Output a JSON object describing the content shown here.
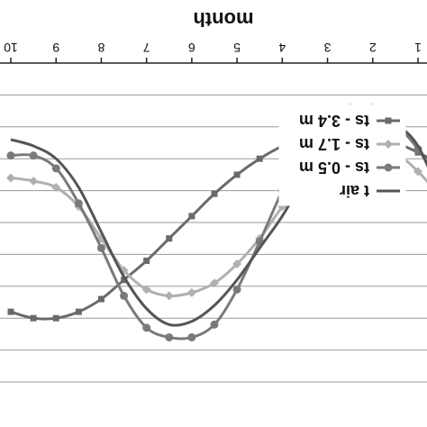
{
  "chart_data": {
    "type": "line",
    "xlabel": "month",
    "x_ticks": [
      1,
      2,
      3,
      4,
      5,
      6,
      7,
      8,
      9,
      10
    ],
    "x_range": [
      1,
      10
    ],
    "y_range": [
      0,
      10
    ],
    "grid": true,
    "legend_position": "top-right",
    "orientation": "rotated 180 degrees",
    "series": [
      {
        "name": "ts - 3.4 m",
        "marker": "square",
        "color": "#6a6a6a",
        "x": [
          0.5,
          1,
          1.5,
          2,
          2.5,
          3,
          3.5,
          4,
          4.5,
          5,
          5.5,
          6,
          6.5,
          7,
          7.5,
          8,
          8.5,
          9,
          9.5,
          10
        ],
        "values": [
          3.2,
          2.8,
          2.5,
          2.3,
          2.2,
          2.2,
          2.3,
          2.6,
          3.0,
          3.5,
          4.1,
          4.8,
          5.5,
          6.2,
          6.8,
          7.4,
          7.8,
          8.0,
          8.0,
          7.8
        ]
      },
      {
        "name": "ts - 1.7 m",
        "marker": "diamond",
        "color": "#b0b0b0",
        "x": [
          0.5,
          1,
          1.5,
          2,
          2.5,
          3,
          3.5,
          4,
          4.5,
          5,
          5.5,
          6,
          6.5,
          7,
          7.5,
          8,
          8.5,
          9,
          9.5,
          10
        ],
        "values": [
          4.2,
          3.4,
          2.8,
          2.5,
          2.6,
          2.9,
          3.6,
          4.5,
          5.5,
          6.3,
          6.9,
          7.2,
          7.3,
          7.1,
          6.5,
          5.5,
          4.5,
          3.9,
          3.7,
          3.6
        ]
      },
      {
        "name": "ts - 0.5 m",
        "marker": "circle",
        "color": "#7a7a7a",
        "x": [
          0.5,
          1,
          1.5,
          2,
          2.5,
          3,
          3.5,
          4,
          4.5,
          5,
          5.5,
          6,
          6.5,
          7,
          7.5,
          8,
          8.5,
          9,
          9.5,
          10
        ],
        "values": [
          3.8,
          2.7,
          1.9,
          1.4,
          1.4,
          1.7,
          2.6,
          4.0,
          5.6,
          7.1,
          8.2,
          8.6,
          8.6,
          8.3,
          7.3,
          5.8,
          4.4,
          3.3,
          2.9,
          2.9
        ]
      },
      {
        "name": "t air",
        "marker": "none",
        "color": "#555555",
        "x": [
          0.5,
          1,
          1.5,
          2,
          2.5,
          3,
          3.5,
          4,
          4.5,
          5,
          5.5,
          6,
          6.5,
          7,
          7.5,
          8,
          8.5,
          9,
          9.5,
          10
        ],
        "values": [
          4.2,
          2.6,
          1.9,
          1.6,
          1.8,
          2.6,
          3.6,
          4.8,
          5.8,
          6.8,
          7.6,
          8.1,
          8.2,
          7.7,
          6.7,
          5.3,
          3.9,
          3.0,
          2.6,
          2.4
        ]
      }
    ]
  }
}
